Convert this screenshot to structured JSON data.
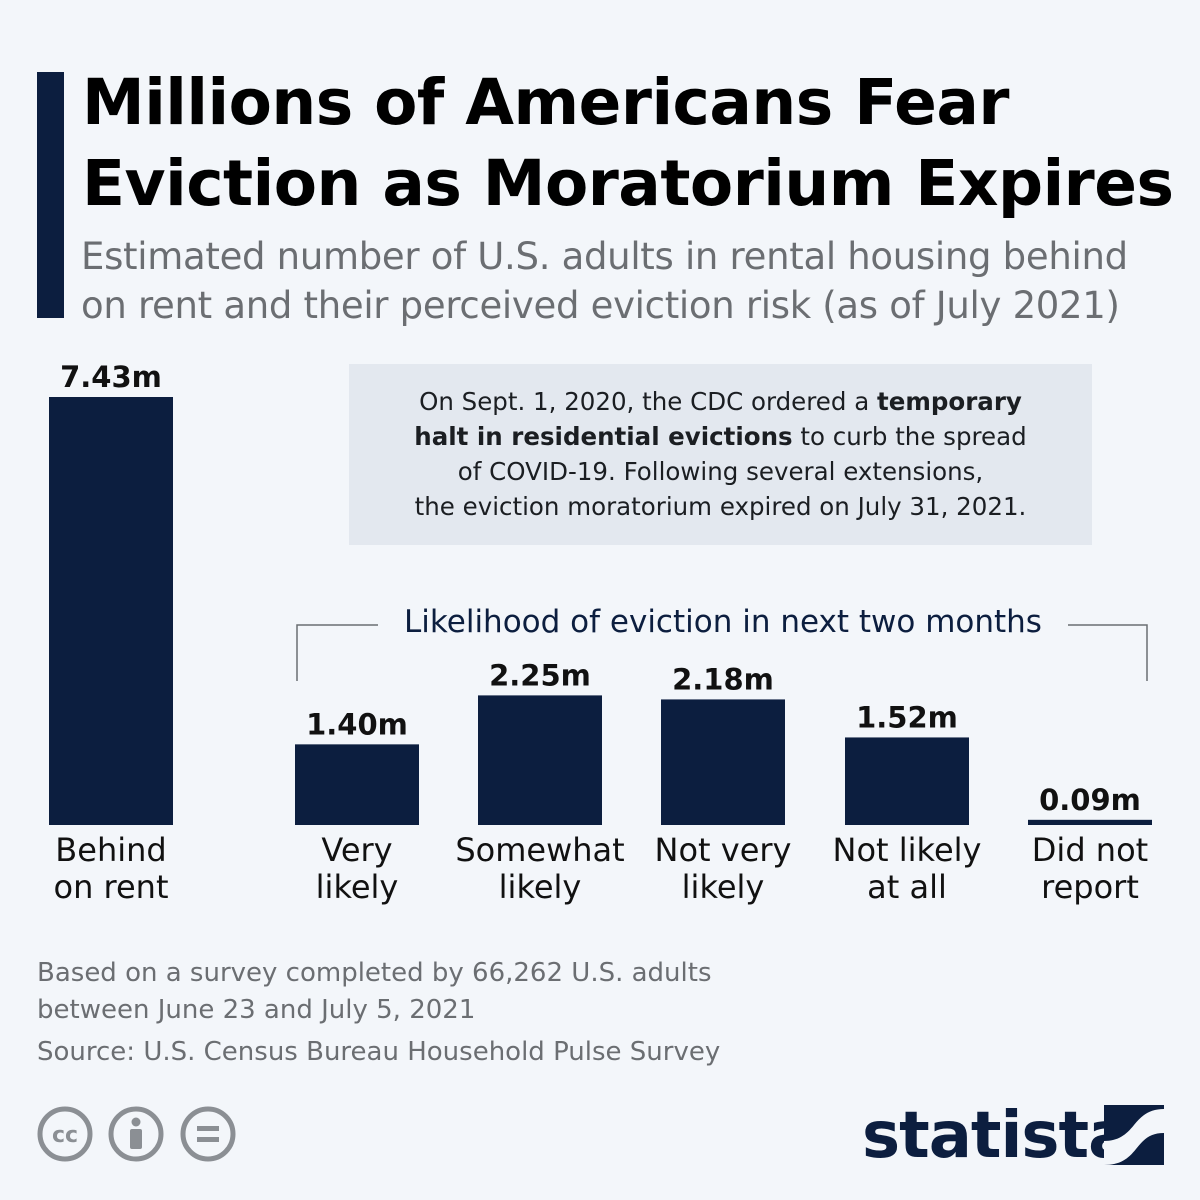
{
  "header": {
    "title_line1": "Millions of Americans Fear",
    "title_line2": "Eviction as Moratorium Expires",
    "subtitle_line1": "Estimated number of U.S. adults in rental housing behind",
    "subtitle_line2": "on rent and their perceived eviction risk (as of July 2021)"
  },
  "note": {
    "l1_pre": "On Sept. 1, 2020, the CDC ordered a ",
    "l1_bold": "temporary",
    "l2_bold": "halt in residential evictions",
    "l2_post": " to curb the spread",
    "l3": "of COVID-19. Following several extensions,",
    "l4": "the eviction moratorium expired on July 31, 2021."
  },
  "group_label": "Likelihood of eviction in next two months",
  "chart_data": {
    "type": "bar",
    "unit": "m",
    "ylim": [
      0,
      7.43
    ],
    "categories": [
      [
        "Behind",
        "on rent"
      ],
      [
        "Very",
        "likely"
      ],
      [
        "Somewhat",
        "likely"
      ],
      [
        "Not very",
        "likely"
      ],
      [
        "Not likely",
        "at all"
      ],
      [
        "Did not",
        "report"
      ]
    ],
    "values": [
      7.43,
      1.4,
      2.25,
      2.18,
      1.52,
      0.09
    ],
    "value_labels": [
      "7.43m",
      "1.40m",
      "2.25m",
      "2.18m",
      "1.52m",
      "0.09m"
    ],
    "bar_color": "#0c1e3f"
  },
  "footer": {
    "note_line1": "Based on a survey completed by 66,262 U.S. adults",
    "note_line2": "between June 23 and July 5, 2021",
    "source": "Source: U.S. Census Bureau Household Pulse Survey",
    "brand": "statista"
  },
  "colors": {
    "accent": "#0c1e3f",
    "background": "#f3f6fa",
    "note_box": "#e3e8ef",
    "muted_text": "#6b6e72"
  },
  "icons": [
    "cc-icon",
    "attribution-icon",
    "no-derivatives-icon",
    "statista-logo-icon"
  ]
}
